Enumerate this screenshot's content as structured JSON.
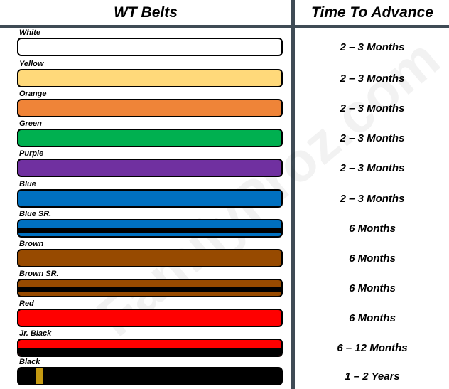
{
  "headers": {
    "belts": "WT Belts",
    "time": "Time To Advance"
  },
  "watermark": "FamilyProz.com",
  "belts": [
    {
      "label": "White",
      "color": "#ffffff",
      "time": "2 – 3 Months",
      "style": "solid"
    },
    {
      "label": "Yellow",
      "color": "#ffd97a",
      "time": "2 – 3 Months",
      "style": "solid"
    },
    {
      "label": "Orange",
      "color": "#ef8438",
      "time": "2 – 3 Months",
      "style": "solid"
    },
    {
      "label": "Green",
      "color": "#00b050",
      "time": "2 – 3 Months",
      "style": "solid"
    },
    {
      "label": "Purple",
      "color": "#7030a0",
      "time": "2 – 3 Months",
      "style": "solid"
    },
    {
      "label": "Blue",
      "color": "#0070c0",
      "time": "2 – 3 Months",
      "style": "solid"
    },
    {
      "label": "Blue SR.",
      "color": "#0070c0",
      "time": "6 Months",
      "style": "stripe"
    },
    {
      "label": "Brown",
      "color": "#974a00",
      "time": "6 Months",
      "style": "solid"
    },
    {
      "label": "Brown SR.",
      "color": "#974a00",
      "time": "6 Months",
      "style": "stripe"
    },
    {
      "label": "Red",
      "color": "#ff0000",
      "time": "6 Months",
      "style": "solid"
    },
    {
      "label": "Jr. Black",
      "color": "#ff0000",
      "time": "6 – 12 Months",
      "style": "split"
    },
    {
      "label": "Black",
      "color": "#000000",
      "time": "1 – 2 Years",
      "style": "rank",
      "accent": "#c59a12"
    }
  ]
}
